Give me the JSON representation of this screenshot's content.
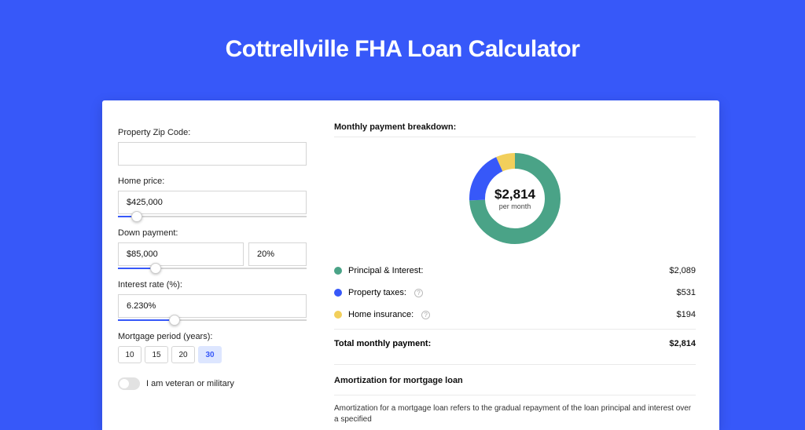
{
  "page": {
    "title": "Cottrellville FHA Loan Calculator",
    "background_color": "#3758f9"
  },
  "form": {
    "zip": {
      "label": "Property Zip Code:",
      "value": ""
    },
    "home_price": {
      "label": "Home price:",
      "value": "$425,000",
      "slider_pct": 10
    },
    "down_payment": {
      "label": "Down payment:",
      "amount": "$85,000",
      "percent": "20%",
      "slider_pct": 20
    },
    "interest_rate": {
      "label": "Interest rate (%):",
      "value": "6.230%",
      "slider_pct": 30
    },
    "mortgage_period": {
      "label": "Mortgage period (years):",
      "options": [
        "10",
        "15",
        "20",
        "30"
      ],
      "selected": "30"
    },
    "veteran": {
      "label": "I am veteran or military",
      "checked": false
    }
  },
  "breakdown": {
    "title": "Monthly payment breakdown:",
    "center_amount": "$2,814",
    "center_sub": "per month",
    "donut": {
      "type": "donut",
      "radius": 48,
      "stroke_width": 20,
      "background_color": "#ffffff",
      "segments": [
        {
          "label": "Principal & Interest:",
          "value": "$2,089",
          "pct": 74.2,
          "color": "#4aa387"
        },
        {
          "label": "Property taxes:",
          "value": "$531",
          "pct": 18.9,
          "color": "#3758f9",
          "has_info": true
        },
        {
          "label": "Home insurance:",
          "value": "$194",
          "pct": 6.9,
          "color": "#f2cf5b",
          "has_info": true
        }
      ]
    },
    "total": {
      "label": "Total monthly payment:",
      "value": "$2,814"
    }
  },
  "amortization": {
    "title": "Amortization for mortgage loan",
    "text": "Amortization for a mortgage loan refers to the gradual repayment of the loan principal and interest over a specified"
  }
}
